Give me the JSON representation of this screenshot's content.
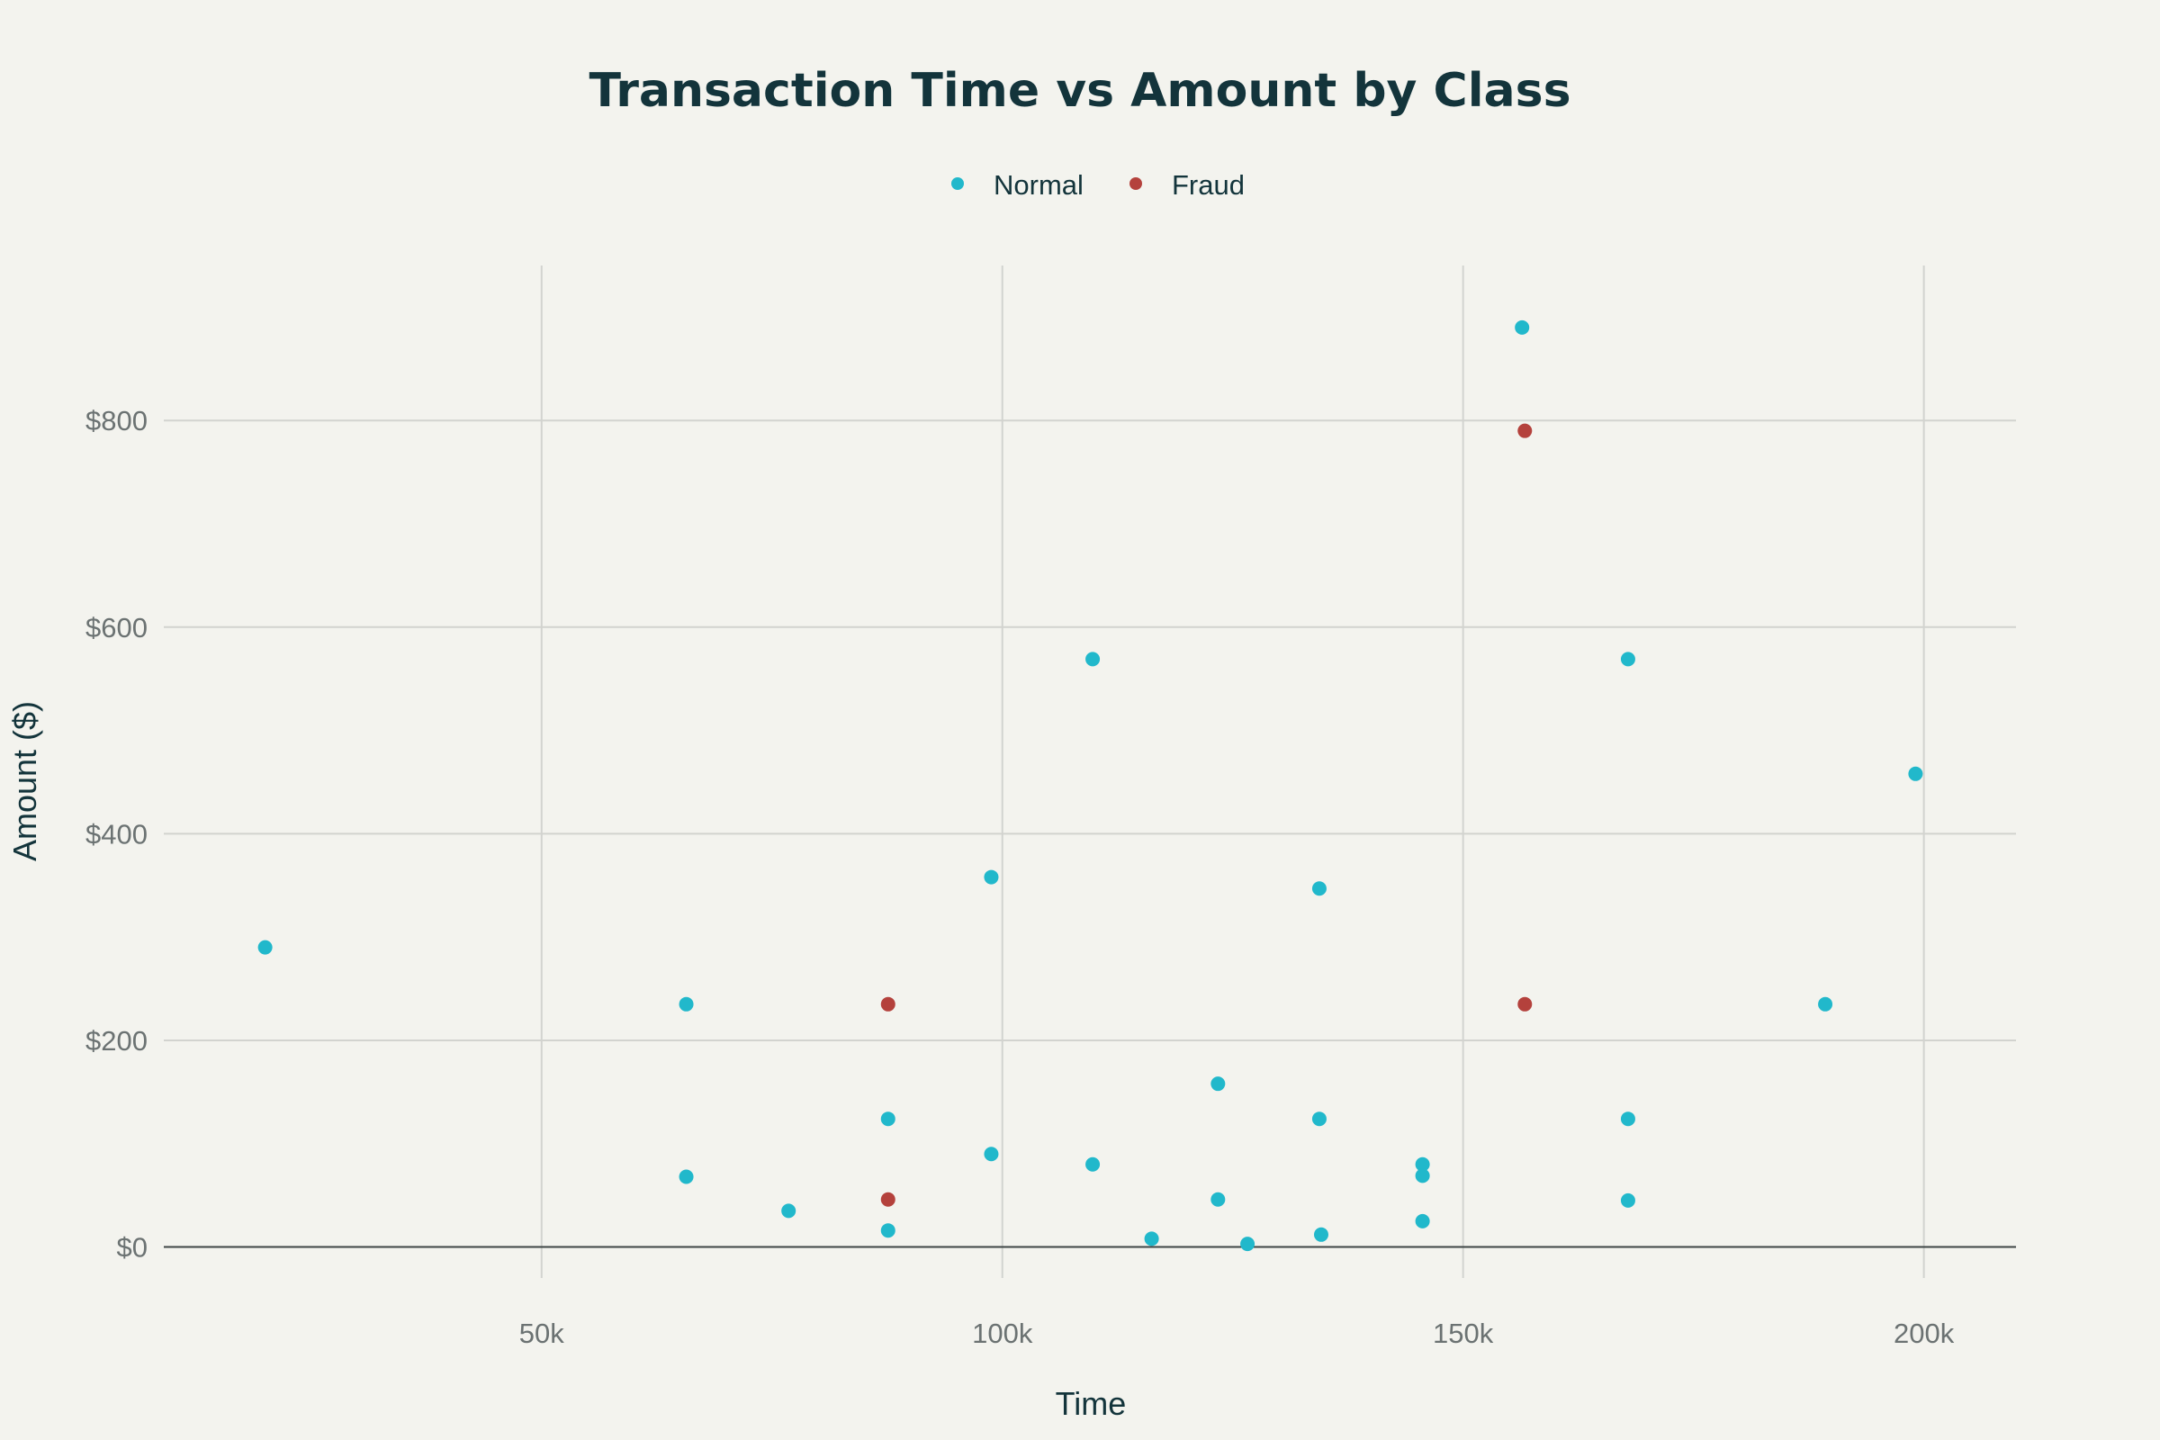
{
  "chart_data": {
    "type": "scatter",
    "title": "Transaction Time vs Amount by Class",
    "xlabel": "Time",
    "ylabel": "Amount ($)",
    "xlim": [
      9000,
      210000
    ],
    "ylim": [
      -30,
      950
    ],
    "x_ticks": [
      {
        "value": 50000,
        "label": "50k"
      },
      {
        "value": 100000,
        "label": "100k"
      },
      {
        "value": 150000,
        "label": "150k"
      },
      {
        "value": 200000,
        "label": "200k"
      }
    ],
    "y_ticks": [
      {
        "value": 0,
        "label": "$0"
      },
      {
        "value": 200,
        "label": "$200"
      },
      {
        "value": 400,
        "label": "$400"
      },
      {
        "value": 600,
        "label": "$600"
      },
      {
        "value": 800,
        "label": "$800"
      }
    ],
    "grid": true,
    "legend_position": "top-center",
    "series": [
      {
        "name": "Normal",
        "color": "#21b8cb",
        "points": [
          {
            "x": 20000,
            "y": 290
          },
          {
            "x": 65700,
            "y": 235
          },
          {
            "x": 65700,
            "y": 68
          },
          {
            "x": 76800,
            "y": 35
          },
          {
            "x": 87600,
            "y": 124
          },
          {
            "x": 87600,
            "y": 16
          },
          {
            "x": 98800,
            "y": 358
          },
          {
            "x": 98800,
            "y": 90
          },
          {
            "x": 109800,
            "y": 569
          },
          {
            "x": 109800,
            "y": 80
          },
          {
            "x": 116200,
            "y": 8
          },
          {
            "x": 123400,
            "y": 158
          },
          {
            "x": 123400,
            "y": 46
          },
          {
            "x": 126600,
            "y": 3
          },
          {
            "x": 134400,
            "y": 347
          },
          {
            "x": 134400,
            "y": 124
          },
          {
            "x": 134600,
            "y": 12
          },
          {
            "x": 145600,
            "y": 80
          },
          {
            "x": 145600,
            "y": 69
          },
          {
            "x": 145600,
            "y": 25
          },
          {
            "x": 156400,
            "y": 890
          },
          {
            "x": 167900,
            "y": 569
          },
          {
            "x": 167900,
            "y": 124
          },
          {
            "x": 167900,
            "y": 45
          },
          {
            "x": 189300,
            "y": 235
          },
          {
            "x": 199100,
            "y": 458
          }
        ]
      },
      {
        "name": "Fraud",
        "color": "#b4413c",
        "points": [
          {
            "x": 87600,
            "y": 235
          },
          {
            "x": 87600,
            "y": 46
          },
          {
            "x": 156700,
            "y": 790
          },
          {
            "x": 156700,
            "y": 235
          }
        ]
      }
    ]
  }
}
